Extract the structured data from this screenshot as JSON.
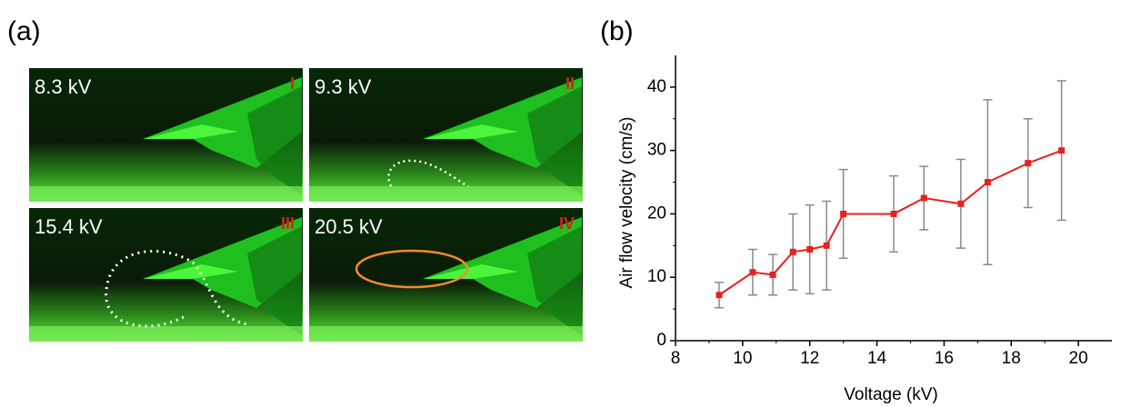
{
  "panel_labels": [
    "(a)",
    "(b)"
  ],
  "photos": [
    {
      "voltage": "8.3 kV",
      "numeral": "I"
    },
    {
      "voltage": "9.3 kV",
      "numeral": "II"
    },
    {
      "voltage": "15.4 kV",
      "numeral": "III"
    },
    {
      "voltage": "20.5 kV",
      "numeral": "IV"
    }
  ],
  "chart_data": {
    "type": "line",
    "x_label": "Voltage (kV)",
    "y_label": "Air flow velocity (cm/s)",
    "x": [
      9.3,
      10.3,
      10.9,
      11.5,
      12,
      12.5,
      13,
      14.5,
      15.4,
      16.5,
      17.3,
      18.5,
      19.5
    ],
    "series": [
      {
        "color": "#e8211f",
        "error_color": "#8a8a8a",
        "values": [
          7.2,
          10.8,
          10.4,
          14,
          14.4,
          15,
          20,
          20,
          22.5,
          21.6,
          25,
          28,
          30
        ],
        "errors": [
          2,
          3.6,
          3.2,
          6,
          7,
          7,
          7,
          6,
          5,
          7,
          13,
          7,
          11
        ]
      }
    ],
    "xlim": [
      8,
      21
    ],
    "xticks": [
      8,
      10,
      12,
      14,
      16,
      18,
      20
    ],
    "ylim": [
      0,
      45
    ],
    "yticks": [
      0,
      10,
      20,
      30,
      40
    ]
  }
}
